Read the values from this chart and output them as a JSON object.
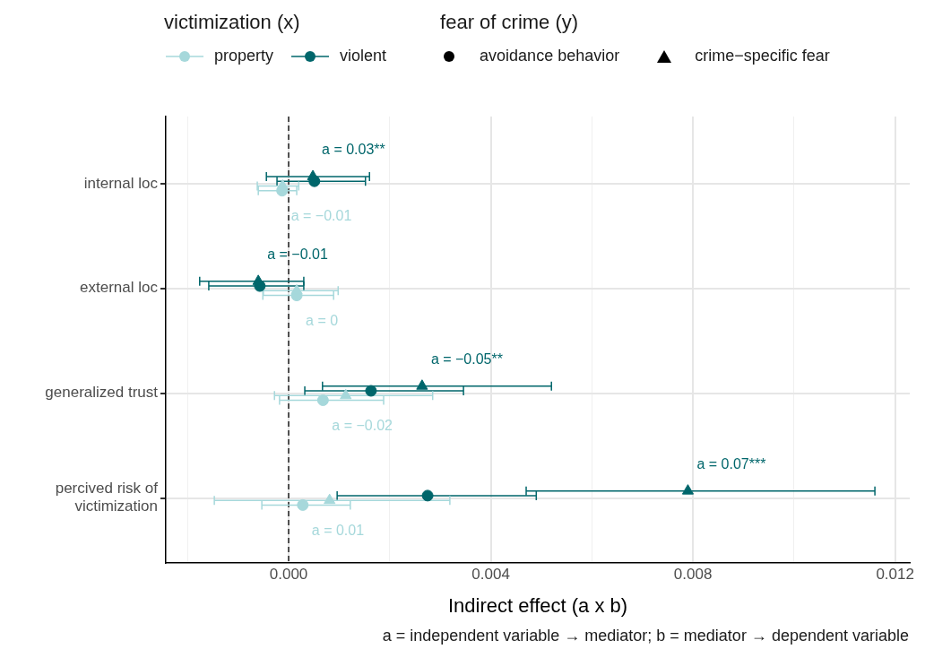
{
  "chart_data": {
    "type": "scatter",
    "orientation": "horizontal",
    "xlabel": "Indirect effect (a x b)",
    "legend_title": "victimization (x)",
    "legend": "top",
    "grid": true,
    "categories": [
      "internal loc",
      "external loc",
      "generalized trust",
      "percived risk of victimization"
    ],
    "xlim": [
      -0.00243,
      0.01229
    ],
    "xticks": [
      {
        "value": -0.002,
        "label": null
      },
      {
        "value": 0,
        "label": "0.000"
      },
      {
        "value": 0.002,
        "label": null
      },
      {
        "value": 0.004,
        "label": "0.004"
      },
      {
        "value": 0.006,
        "label": null
      },
      {
        "value": 0.008,
        "label": "0.008"
      },
      {
        "value": 0.01,
        "label": null
      },
      {
        "value": 0.012,
        "label": "0.012"
      }
    ],
    "series": [
      {
        "color": "#00666b",
        "marker": "triangle",
        "values": [
          0.00048,
          -0.0006,
          0.00264,
          0.0079
        ],
        "errors": [
          [
            -0.00044,
            0.0016
          ],
          [
            -0.00176,
            0.0003
          ],
          [
            0.00067,
            0.0052
          ],
          [
            0.0047,
            0.0116
          ]
        ]
      },
      {
        "name": "violent",
        "color": "#00666b",
        "marker": "circle",
        "values": [
          0.00051,
          -0.00057,
          0.00163,
          0.00275
        ],
        "errors": [
          [
            -0.00023,
            0.00152
          ],
          [
            -0.00158,
            0.0003
          ],
          [
            0.00032,
            0.00346
          ],
          [
            0.00096,
            0.0049
          ]
        ]
      },
      {
        "color": "#a6d8db",
        "marker": "triangle",
        "values": [
          -0.00012,
          0.00016,
          0.00113,
          0.00081
        ],
        "errors": [
          [
            -0.00062,
            0.0002
          ],
          [
            -0.0005,
            0.00098
          ],
          [
            -0.00028,
            0.00285
          ],
          [
            -0.00147,
            0.00319
          ]
        ]
      },
      {
        "name": "property",
        "color": "#a6d8db",
        "marker": "circle",
        "values": [
          -0.00013,
          0.00016,
          0.00068,
          0.00028
        ],
        "errors": [
          [
            -0.0006,
            0.00016
          ],
          [
            -0.00051,
            0.00089
          ],
          [
            -0.00018,
            0.00188
          ],
          [
            -0.00053,
            0.00122
          ]
        ]
      }
    ],
    "ref_lines": [
      {
        "axis": "x",
        "value": 0,
        "color": "#000000",
        "line_style": "dashed"
      }
    ],
    "annotations": [
      "fear of crime (y)",
      "avoidance behavior",
      "crime−specific fear",
      "a = independent variable → mediator; b = mediator → dependent variable",
      {
        "text": "a = 0.03**",
        "x": 0.00048,
        "y": "internal loc"
      },
      {
        "text": "a = −0.01",
        "x": -0.00013,
        "y": "internal loc"
      },
      {
        "text": "a = −0.01",
        "x": -0.0006,
        "y": "external loc"
      },
      {
        "text": "a = 0",
        "x": 0.00016,
        "y": "external loc"
      },
      {
        "text": "a = −0.05**",
        "x": 0.00264,
        "y": "generalized trust"
      },
      {
        "text": "a = −0.02",
        "x": 0.00068,
        "y": "generalized trust"
      },
      {
        "text": "a = 0.07***",
        "x": 0.0079,
        "y": "percived risk of victimization"
      },
      {
        "text": "a = 0.01",
        "x": 0.00028,
        "y": "percived risk of victimization"
      }
    ]
  }
}
